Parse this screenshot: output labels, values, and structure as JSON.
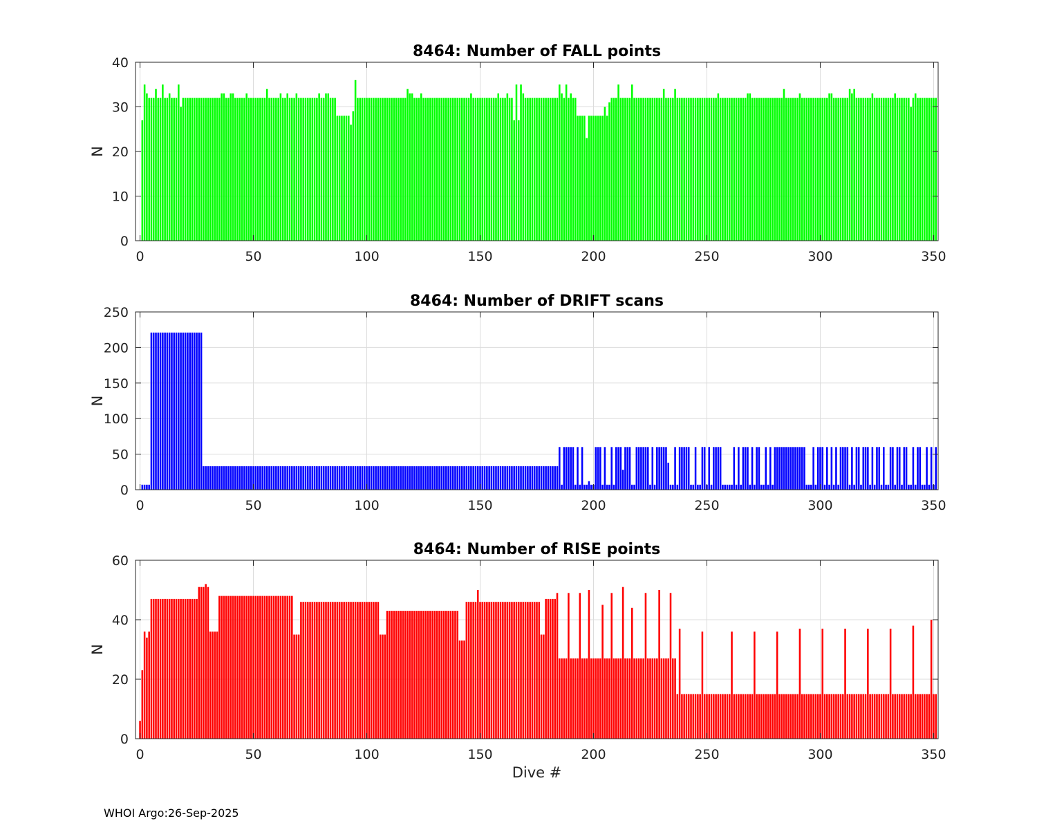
{
  "chart_data": [
    {
      "type": "bar",
      "title": "8464: Number of FALL points",
      "xlabel": "",
      "ylabel": "N",
      "xlim": [
        -2,
        352
      ],
      "ylim": [
        0,
        40
      ],
      "xticks": [
        0,
        50,
        100,
        150,
        200,
        250,
        300,
        350
      ],
      "yticks": [
        0,
        10,
        20,
        30,
        40
      ],
      "grid": true,
      "color": "#00ff00",
      "segments": [
        {
          "from": 1,
          "to": 1,
          "value": 27
        },
        {
          "from": 2,
          "to": 2,
          "value": 35
        },
        {
          "from": 3,
          "to": 3,
          "value": 33
        },
        {
          "from": 4,
          "to": 86,
          "value": 32
        },
        {
          "from": 87,
          "to": 92,
          "value": 28
        },
        {
          "from": 93,
          "to": 93,
          "value": 26
        },
        {
          "from": 94,
          "to": 94,
          "value": 29
        },
        {
          "from": 95,
          "to": 95,
          "value": 36
        },
        {
          "from": 96,
          "to": 164,
          "value": 32
        },
        {
          "from": 165,
          "to": 168,
          "value": 27
        },
        {
          "from": 169,
          "to": 192,
          "value": 32
        },
        {
          "from": 193,
          "to": 196,
          "value": 28
        },
        {
          "from": 197,
          "to": 197,
          "value": 23
        },
        {
          "from": 198,
          "to": 206,
          "value": 28
        },
        {
          "from": 207,
          "to": 207,
          "value": 31
        },
        {
          "from": 208,
          "to": 351,
          "value": 32
        }
      ],
      "overrides": [
        [
          7,
          34
        ],
        [
          10,
          35
        ],
        [
          13,
          33
        ],
        [
          17,
          35
        ],
        [
          18,
          30
        ],
        [
          36,
          33
        ],
        [
          37,
          33
        ],
        [
          40,
          33
        ],
        [
          41,
          33
        ],
        [
          47,
          33
        ],
        [
          56,
          34
        ],
        [
          62,
          33
        ],
        [
          65,
          33
        ],
        [
          69,
          33
        ],
        [
          79,
          33
        ],
        [
          82,
          33
        ],
        [
          83,
          33
        ],
        [
          118,
          34
        ],
        [
          119,
          33
        ],
        [
          120,
          33
        ],
        [
          124,
          33
        ],
        [
          146,
          33
        ],
        [
          158,
          33
        ],
        [
          162,
          33
        ],
        [
          166,
          35
        ],
        [
          168,
          35
        ],
        [
          169,
          33
        ],
        [
          185,
          35
        ],
        [
          186,
          33
        ],
        [
          188,
          35
        ],
        [
          190,
          33
        ],
        [
          205,
          30
        ],
        [
          211,
          35
        ],
        [
          216,
          32
        ],
        [
          217,
          35
        ],
        [
          231,
          34
        ],
        [
          236,
          34
        ],
        [
          255,
          33
        ],
        [
          268,
          33
        ],
        [
          269,
          33
        ],
        [
          284,
          34
        ],
        [
          291,
          33
        ],
        [
          304,
          33
        ],
        [
          305,
          33
        ],
        [
          313,
          34
        ],
        [
          314,
          33
        ],
        [
          315,
          34
        ],
        [
          323,
          33
        ],
        [
          333,
          33
        ],
        [
          340,
          30
        ],
        [
          342,
          33
        ]
      ]
    },
    {
      "type": "bar",
      "title": "8464: Number of DRIFT scans",
      "xlabel": "",
      "ylabel": "N",
      "xlim": [
        -2,
        352
      ],
      "ylim": [
        0,
        250
      ],
      "xticks": [
        0,
        50,
        100,
        150,
        200,
        250,
        300,
        350
      ],
      "yticks": [
        0,
        50,
        100,
        150,
        200,
        250
      ],
      "grid": true,
      "color": "#0000ff",
      "segments": [
        {
          "from": 1,
          "to": 4,
          "value": 7
        },
        {
          "from": 5,
          "to": 27,
          "value": 221
        },
        {
          "from": 28,
          "to": 184,
          "value": 33
        }
      ],
      "tail_pattern": {
        "from": 185,
        "to": 351,
        "high": 60,
        "low": 7,
        "high_fraction": 0.65
      },
      "overrides": [
        [
          198,
          12
        ],
        [
          213,
          28
        ],
        [
          233,
          38
        ]
      ]
    },
    {
      "type": "bar",
      "title": "8464: Number of RISE points",
      "xlabel": "Dive #",
      "ylabel": "N",
      "xlim": [
        -2,
        352
      ],
      "ylim": [
        0,
        60
      ],
      "xticks": [
        0,
        50,
        100,
        150,
        200,
        250,
        300,
        350
      ],
      "yticks": [
        0,
        20,
        40,
        60
      ],
      "grid": true,
      "color": "#ff0000",
      "segments": [
        {
          "from": 0,
          "to": 0,
          "value": 6
        },
        {
          "from": 1,
          "to": 1,
          "value": 23
        },
        {
          "from": 2,
          "to": 2,
          "value": 36
        },
        {
          "from": 3,
          "to": 3,
          "value": 34
        },
        {
          "from": 4,
          "to": 4,
          "value": 36
        },
        {
          "from": 5,
          "to": 5,
          "value": 47
        },
        {
          "from": 6,
          "to": 25,
          "value": 47
        },
        {
          "from": 26,
          "to": 30,
          "value": 51
        },
        {
          "from": 31,
          "to": 34,
          "value": 36
        },
        {
          "from": 35,
          "to": 67,
          "value": 48
        },
        {
          "from": 68,
          "to": 70,
          "value": 35
        },
        {
          "from": 71,
          "to": 105,
          "value": 46
        },
        {
          "from": 106,
          "to": 108,
          "value": 35
        },
        {
          "from": 109,
          "to": 140,
          "value": 43
        },
        {
          "from": 141,
          "to": 143,
          "value": 33
        },
        {
          "from": 144,
          "to": 176,
          "value": 46
        },
        {
          "from": 177,
          "to": 178,
          "value": 35
        },
        {
          "from": 179,
          "to": 184,
          "value": 47
        },
        {
          "from": 185,
          "to": 236,
          "value": 27
        },
        {
          "from": 237,
          "to": 351,
          "value": 15
        }
      ],
      "overrides": [
        [
          29,
          52
        ],
        [
          30,
          51
        ],
        [
          149,
          50
        ],
        [
          184,
          49
        ],
        [
          189,
          49
        ],
        [
          194,
          49
        ],
        [
          198,
          50
        ],
        [
          204,
          45
        ],
        [
          208,
          49
        ],
        [
          213,
          51
        ],
        [
          217,
          44
        ],
        [
          223,
          49
        ],
        [
          229,
          50
        ],
        [
          234,
          49
        ],
        [
          238,
          37
        ],
        [
          248,
          36
        ],
        [
          261,
          36
        ],
        [
          271,
          36
        ],
        [
          281,
          36
        ],
        [
          291,
          37
        ],
        [
          301,
          37
        ],
        [
          311,
          37
        ],
        [
          321,
          37
        ],
        [
          331,
          37
        ],
        [
          341,
          38
        ],
        [
          349,
          40
        ]
      ]
    }
  ],
  "footer": "WHOI Argo:26-Sep-2025"
}
